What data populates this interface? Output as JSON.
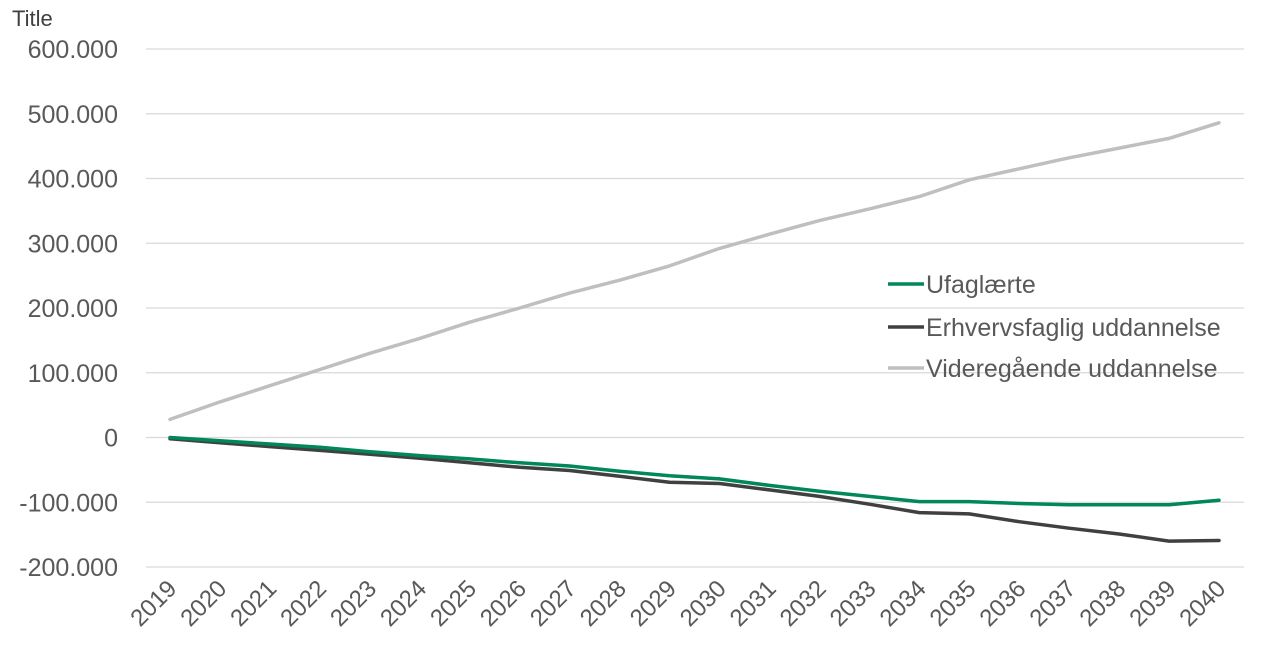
{
  "chart_data": {
    "type": "line",
    "y_axis_title": "Title",
    "x": [
      "2019",
      "2020",
      "2021",
      "2022",
      "2023",
      "2024",
      "2025",
      "2026",
      "2027",
      "2028",
      "2029",
      "2030",
      "2031",
      "2032",
      "2033",
      "2034",
      "2035",
      "2036",
      "2037",
      "2038",
      "2039",
      "2040"
    ],
    "ylim": [
      -200000,
      600000
    ],
    "y_ticks": [
      600000,
      500000,
      400000,
      300000,
      200000,
      100000,
      0,
      -100000,
      -200000
    ],
    "y_tick_labels": [
      "600.000",
      "500.000",
      "400.000",
      "300.000",
      "200.000",
      "100.000",
      "0",
      "-100.000",
      "-200.000"
    ],
    "grid": true,
    "legend_position": "right",
    "series": [
      {
        "name": "Ufaglærte",
        "color": "#00875A",
        "values": [
          0,
          -5000,
          -10000,
          -15000,
          -22000,
          -28000,
          -33000,
          -39000,
          -44000,
          -52000,
          -59000,
          -64000,
          -74000,
          -83000,
          -91000,
          -99000,
          -99000,
          -102000,
          -104000,
          -104000,
          -104000,
          -97000
        ]
      },
      {
        "name": "Erhvervsfaglig uddannelse",
        "color": "#404040",
        "values": [
          -2000,
          -8000,
          -14000,
          -20000,
          -26000,
          -32000,
          -39000,
          -46000,
          -51000,
          -60000,
          -69000,
          -71000,
          -81000,
          -91000,
          -103000,
          -116000,
          -118000,
          -130000,
          -140000,
          -149000,
          -160000,
          -159000
        ]
      },
      {
        "name": "Videregående uddannelse",
        "color": "#BFBFBF",
        "values": [
          28000,
          55000,
          80000,
          105000,
          130000,
          153000,
          178000,
          200000,
          223000,
          243000,
          265000,
          292000,
          314000,
          335000,
          353000,
          372000,
          398000,
          415000,
          432000,
          447000,
          462000,
          486000
        ]
      }
    ]
  }
}
